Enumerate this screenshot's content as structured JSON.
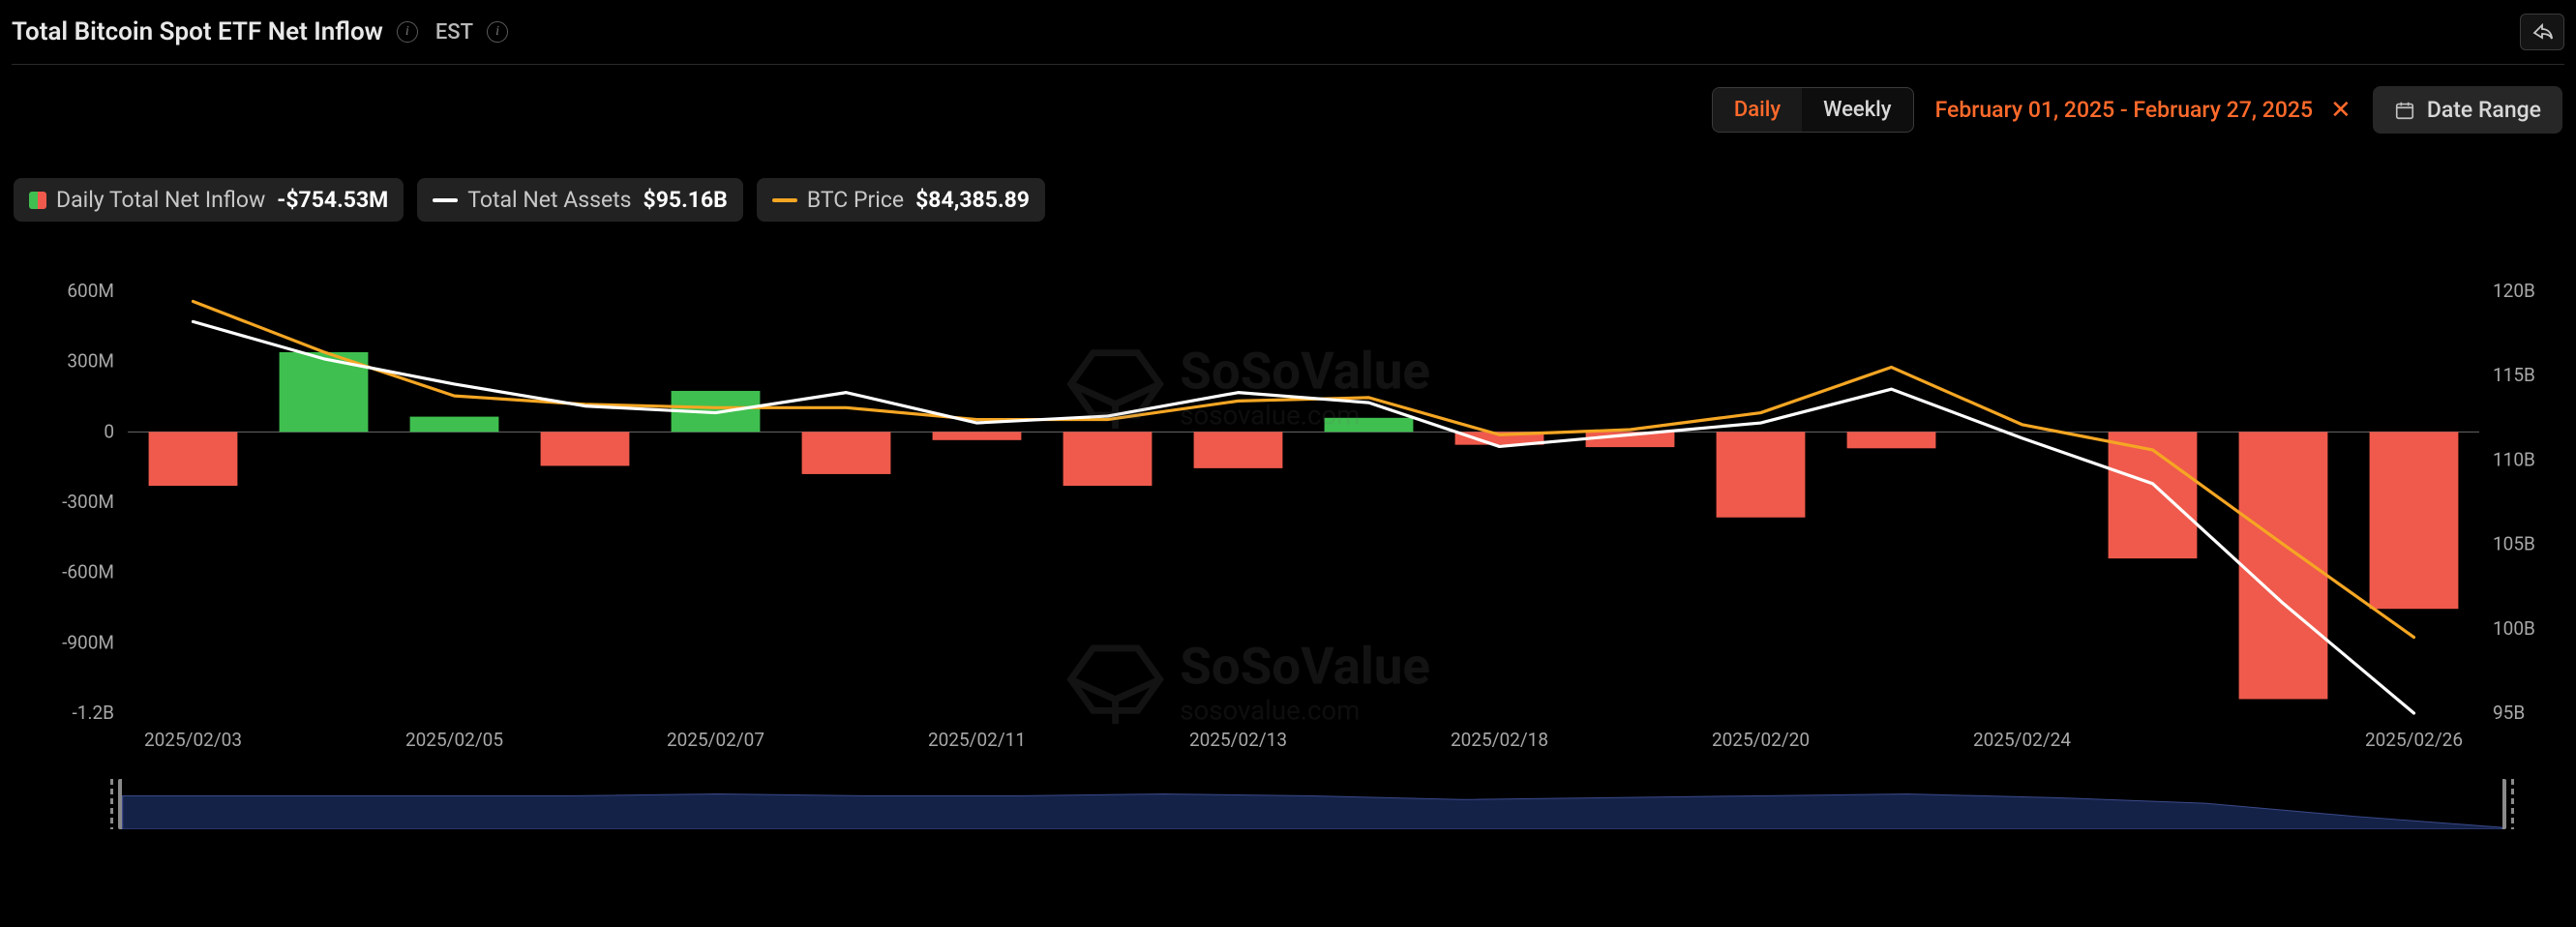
{
  "header": {
    "title": "Total Bitcoin Spot ETF Net Inflow",
    "tz": "EST"
  },
  "controls": {
    "toggle": {
      "daily": "Daily",
      "weekly": "Weekly",
      "active": "daily"
    },
    "range_label": "February 01, 2025 - February 27, 2025",
    "range_btn": "Date Range"
  },
  "legend": {
    "inflow": {
      "label": "Daily Total Net Inflow",
      "value": "-$754.53M"
    },
    "assets": {
      "label": "Total Net Assets",
      "value": "$95.16B",
      "color": "#ffffff"
    },
    "price": {
      "label": "BTC Price",
      "value": "$84,385.89",
      "color": "#f5a623"
    }
  },
  "watermark": {
    "brand": "SoSoValue",
    "site": "sosovalue.com"
  },
  "chart": {
    "type": "bar+line-dual-axis",
    "background": "#000000",
    "bar_pos_color": "#3fbf4f",
    "bar_neg_color": "#ef5a4c",
    "line_colors": {
      "assets": "#ffffff",
      "price": "#f5a623"
    },
    "grid_on": false,
    "axis_color": "#6a6a6a",
    "tick_font_size": 19,
    "tick_color": "#a8a8a8",
    "left_axis": {
      "min_m": -1200,
      "max_m": 600,
      "step_m": 300,
      "ticks": [
        "600M",
        "300M",
        "0",
        "-300M",
        "-600M",
        "-900M",
        "-1.2B"
      ]
    },
    "right_axis": {
      "min_b": 95,
      "max_b": 120,
      "step_b": 5,
      "ticks": [
        "120B",
        "115B",
        "110B",
        "105B",
        "100B",
        "95B"
      ]
    },
    "x_ticks": [
      "2025/02/03",
      "2025/02/05",
      "2025/02/07",
      "2025/02/11",
      "2025/02/13",
      "2025/02/18",
      "2025/02/20",
      "2025/02/24",
      "2025/02/26"
    ],
    "bars_inflow_m": [
      -230,
      340,
      65,
      -145,
      175,
      -180,
      -35,
      -230,
      -155,
      60,
      -55,
      -65,
      -365,
      -70,
      0,
      -540,
      -1140,
      -755
    ],
    "line_assets_b": [
      118.2,
      116.0,
      114.5,
      113.2,
      112.8,
      114.0,
      112.2,
      112.6,
      114.0,
      113.4,
      110.8,
      111.5,
      112.2,
      114.2,
      111.3,
      108.6,
      101.5,
      95.0
    ],
    "line_price_b": [
      119.4,
      116.4,
      113.8,
      113.3,
      113.1,
      113.1,
      112.4,
      112.4,
      113.5,
      113.7,
      111.5,
      111.8,
      112.8,
      115.5,
      112.1,
      110.6,
      105.0,
      99.5
    ],
    "scrubber_path_b": [
      113,
      113,
      113,
      113,
      114,
      113,
      113,
      114,
      113,
      111,
      112,
      113,
      114,
      112,
      109,
      102,
      96
    ]
  }
}
